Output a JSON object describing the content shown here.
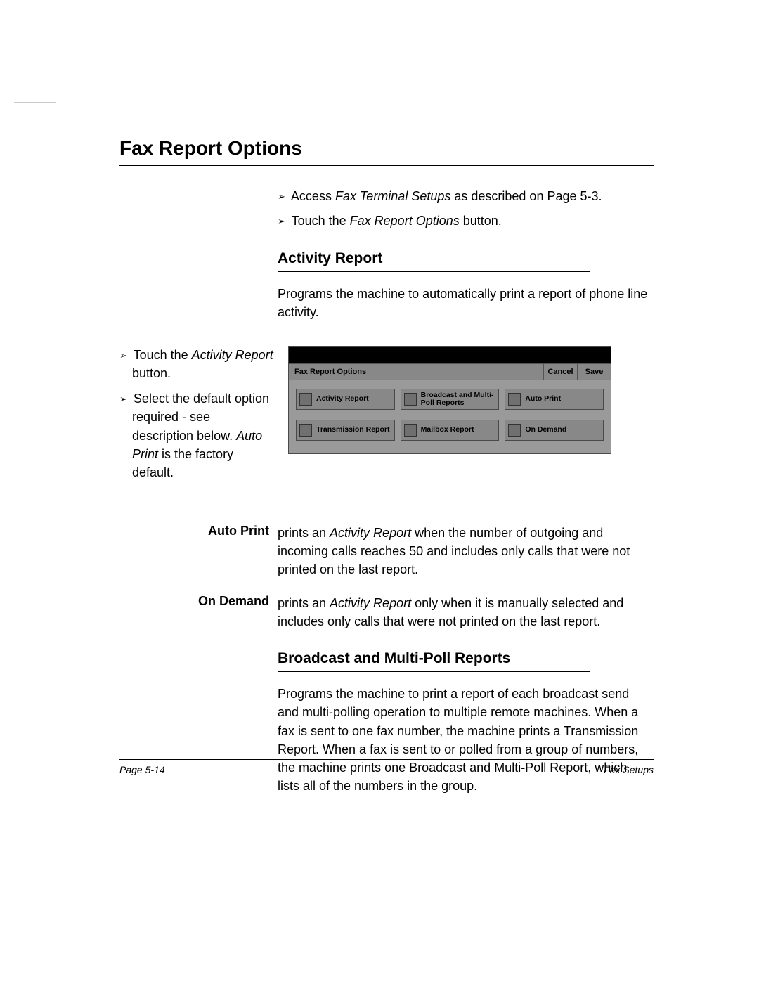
{
  "heading": "Fax Report Options",
  "intro": {
    "line1_pre": "Access ",
    "line1_em": "Fax Terminal Setups",
    "line1_post": " as described on Page 5-3.",
    "line2_pre": "Touch the ",
    "line2_em": "Fax Report Options",
    "line2_post": " button."
  },
  "section1": {
    "title": "Activity Report",
    "para": "Programs the machine to automatically print a report of phone line activity."
  },
  "side": {
    "s1_pre": "Touch the ",
    "s1_em": "Activity Report",
    "s1_post": " button.",
    "s2_pre": "Select the default option required - see description below. ",
    "s2_em": "Auto Print",
    "s2_post": " is the factory default."
  },
  "screenshot": {
    "title": "Fax Report Options",
    "cancel": "Cancel",
    "save": "Save",
    "buttons": {
      "b1": "Activity Report",
      "b2": "Broadcast and Multi-Poll Reports",
      "b3": "Auto Print",
      "b4": "Transmission Report",
      "b5": "Mailbox Report",
      "b6": "On Demand"
    },
    "colors": {
      "panel_bg": "#9a9a9a",
      "btn_bg": "#888888",
      "border": "#4a4a4a",
      "black": "#000000"
    }
  },
  "defs": {
    "d1_term": "Auto Print",
    "d1_pre": "prints an ",
    "d1_em": "Activity Report",
    "d1_post": " when the number of outgoing and incoming calls reaches 50 and includes only calls that were not printed on the last report.",
    "d2_term": "On Demand",
    "d2_pre": "prints an ",
    "d2_em": "Activity Report",
    "d2_post": " only when it is manually selected and includes only calls that were not printed on the last report."
  },
  "section2": {
    "title": "Broadcast and Multi-Poll Reports",
    "para": "Programs the machine to print a report of each broadcast send and multi-polling operation to multiple remote machines. When a fax is sent to one fax number, the machine prints a Transmission Report. When a fax is sent to or polled from a group of numbers, the machine prints one Broadcast and Multi-Poll Report, which lists all of the numbers in the group."
  },
  "footer": {
    "left": "Page 5-14",
    "right": "Fax Setups"
  }
}
